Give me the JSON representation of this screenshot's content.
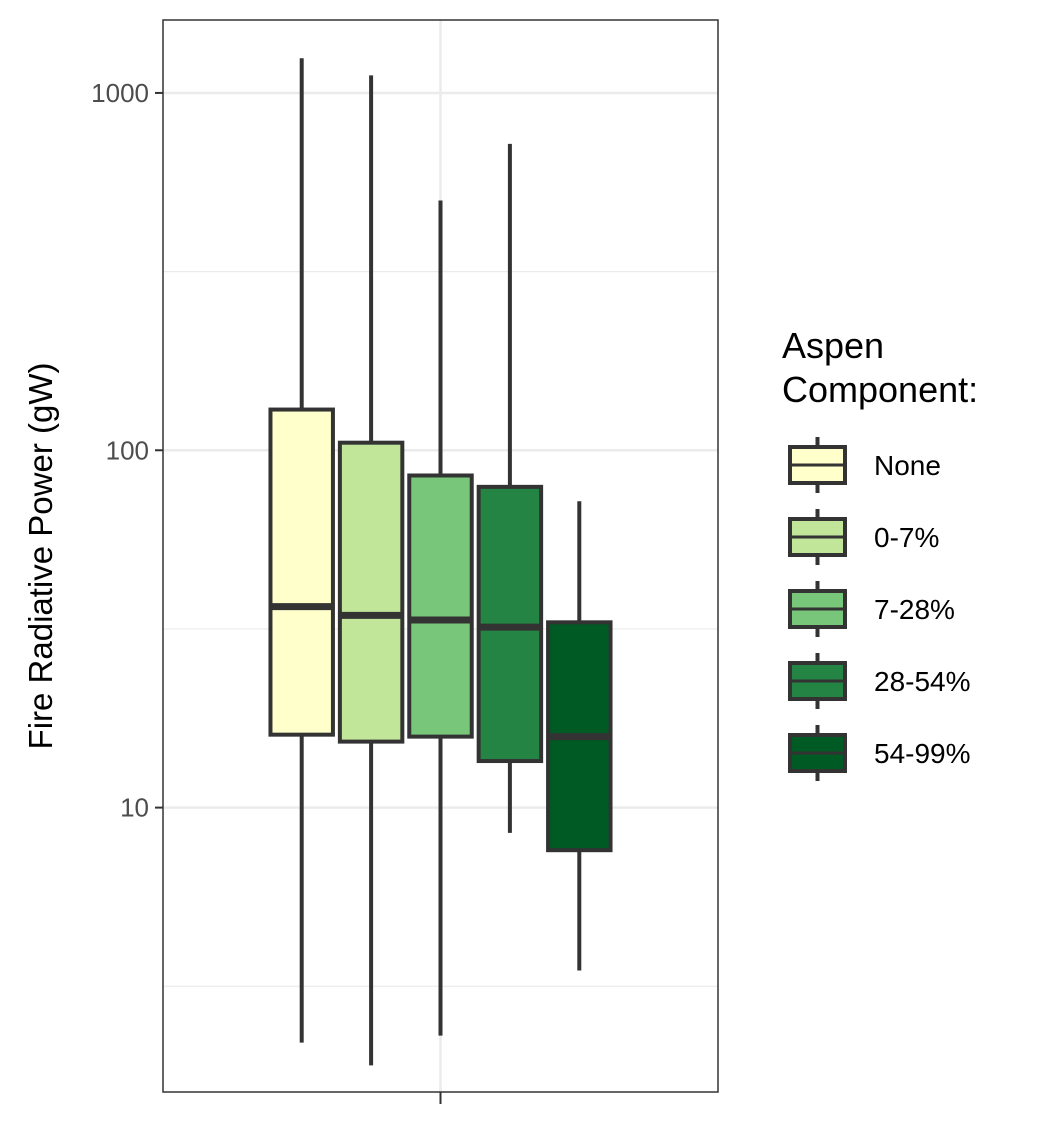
{
  "chart_data": {
    "type": "boxplot",
    "ylabel": "Fire Radiative Power (gW)",
    "xlabel": "",
    "yscale": "log10",
    "ylim": [
      1.6,
      1600
    ],
    "yticks": [
      10,
      100,
      1000
    ],
    "ytick_labels": [
      "10",
      "100",
      "1000"
    ],
    "grid": true,
    "legend": {
      "title_lines": [
        "Aspen",
        "Component:"
      ],
      "placement": "right"
    },
    "series": [
      {
        "name": "None",
        "color": "#ffffcc",
        "whisker_low": 2.2,
        "q1": 16.0,
        "median": 36.5,
        "q3": 130,
        "whisker_high": 1250
      },
      {
        "name": "0-7%",
        "color": "#c2e699",
        "whisker_low": 1.9,
        "q1": 15.3,
        "median": 34.5,
        "q3": 105,
        "whisker_high": 1120
      },
      {
        "name": "7-28%",
        "color": "#78c679",
        "whisker_low": 2.3,
        "q1": 15.8,
        "median": 33.5,
        "q3": 85,
        "whisker_high": 500
      },
      {
        "name": "28-54%",
        "color": "#238443",
        "whisker_low": 8.5,
        "q1": 13.5,
        "median": 32.0,
        "q3": 79,
        "whisker_high": 720
      },
      {
        "name": "54-99%",
        "color": "#005a24",
        "whisker_low": 3.5,
        "q1": 7.6,
        "median": 15.8,
        "q3": 33.0,
        "whisker_high": 72
      }
    ]
  }
}
